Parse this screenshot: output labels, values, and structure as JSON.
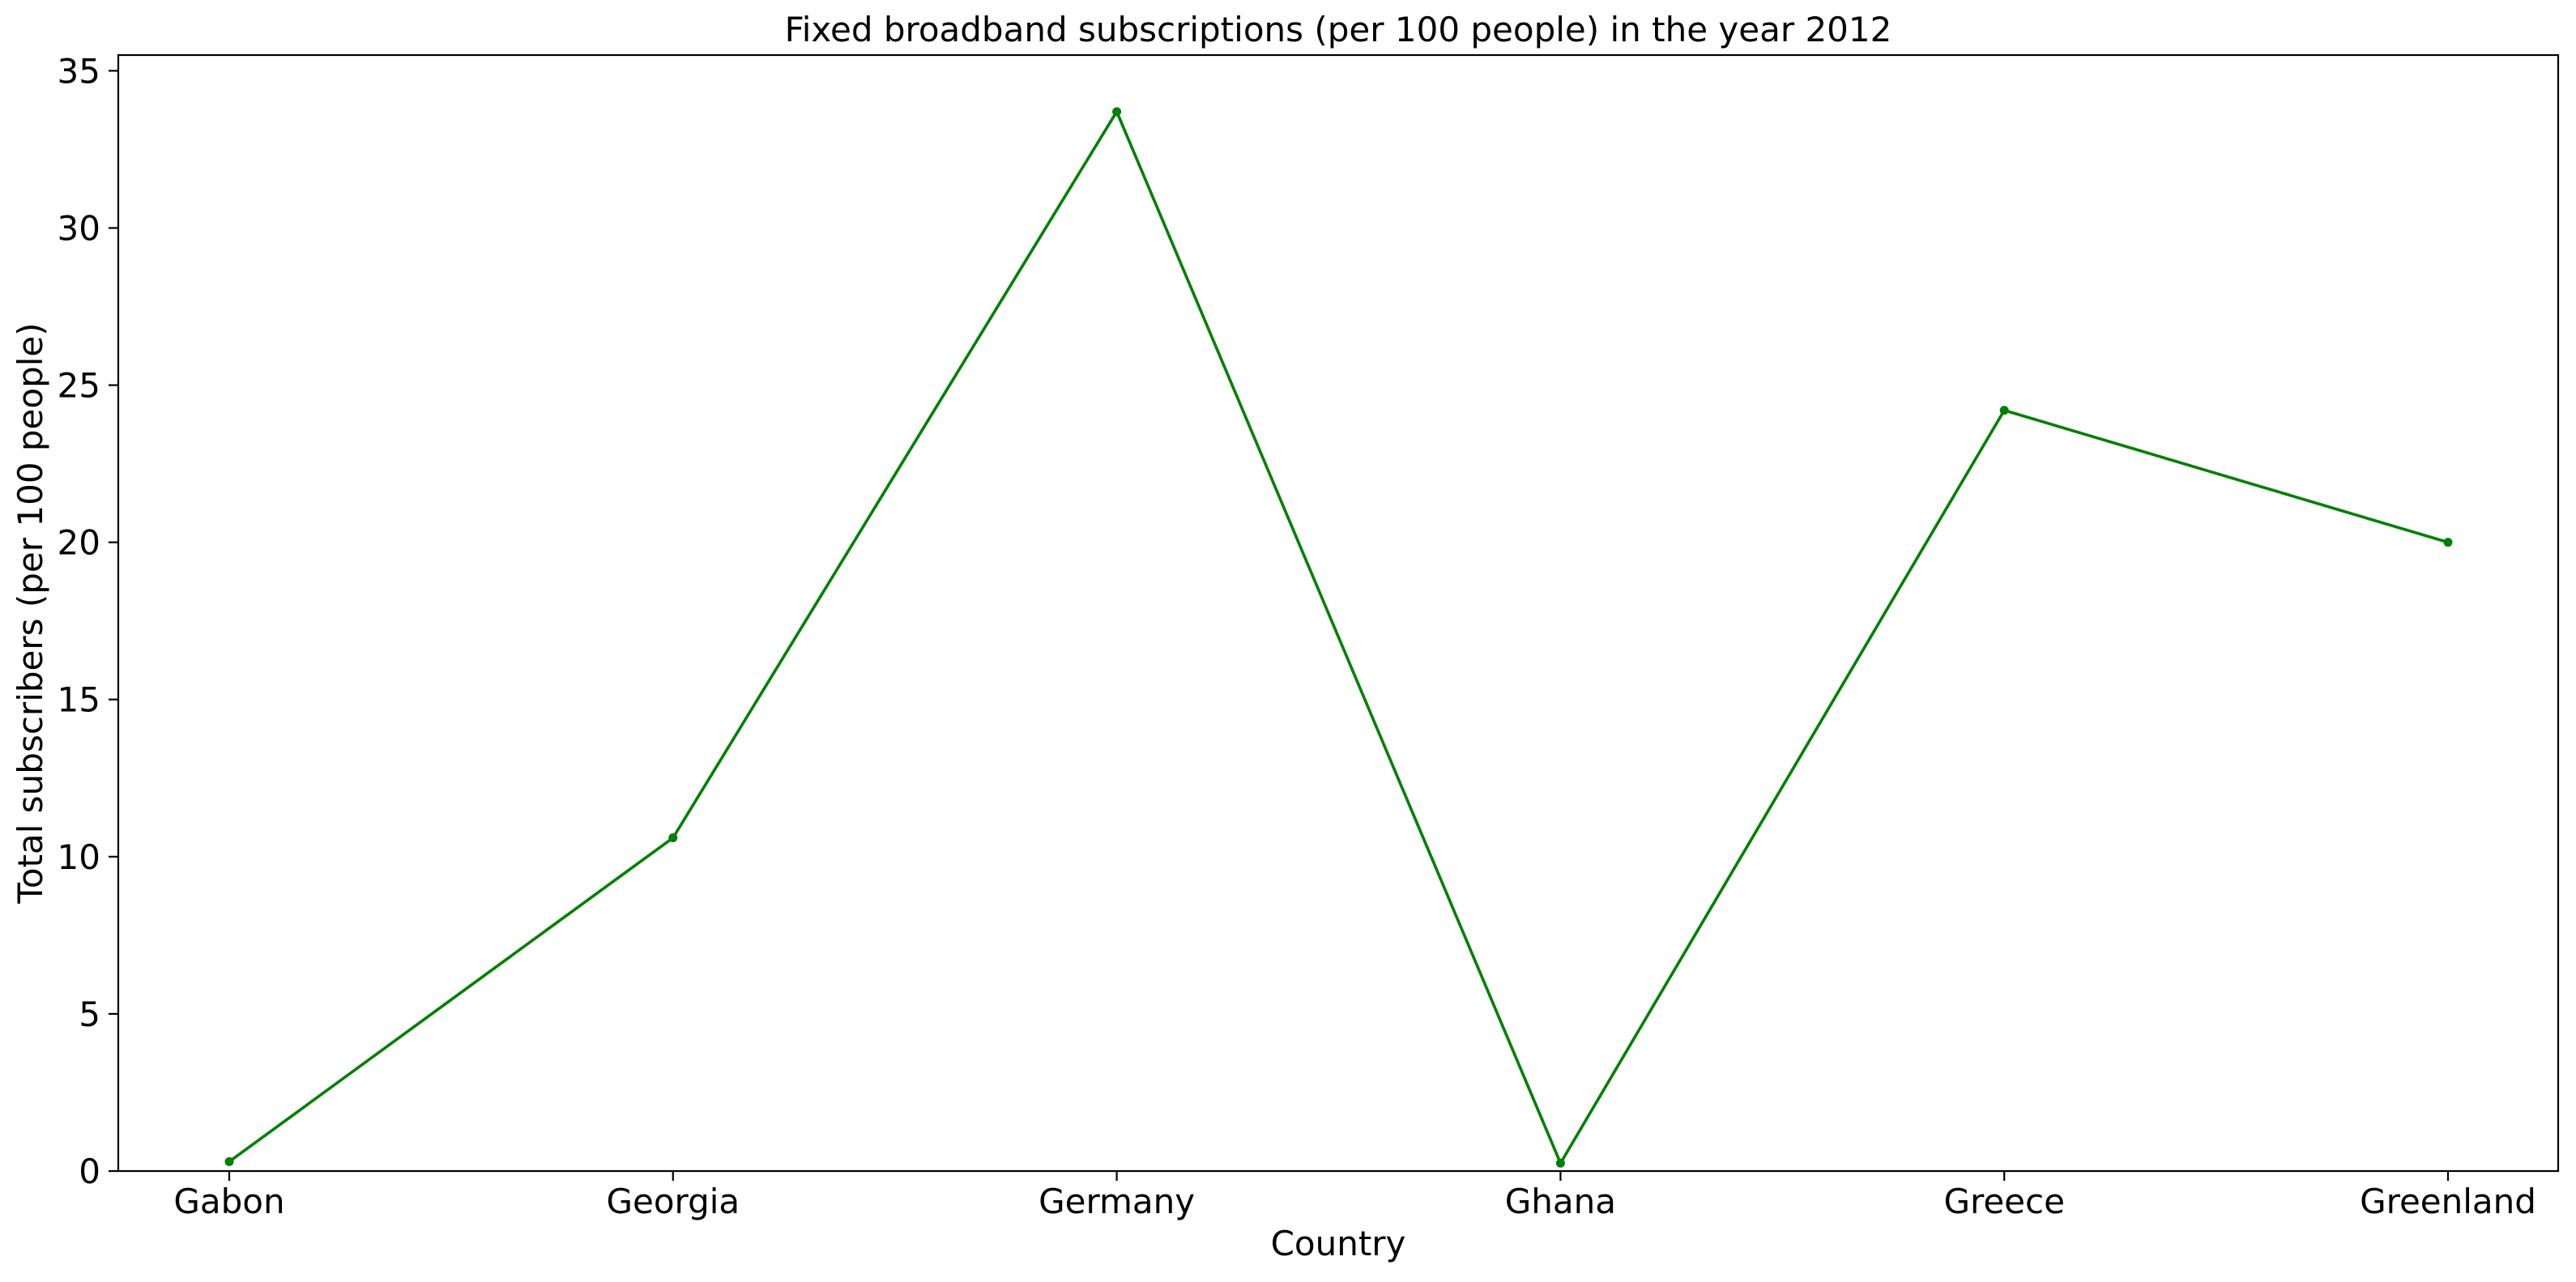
{
  "colors": {
    "background": "#ffffff",
    "axis": "#000000",
    "series": "#008000"
  },
  "chart_data": {
    "type": "line",
    "title": "Fixed broadband subscriptions (per 100 people) in the year 2012",
    "xlabel": "Country",
    "ylabel": "Total subscribers (per 100 people)",
    "categories": [
      "Gabon",
      "Georgia",
      "Germany",
      "Ghana",
      "Greece",
      "Greenland"
    ],
    "series": [
      {
        "values": [
          0.3,
          10.6,
          33.7,
          0.25,
          24.2,
          20.0
        ],
        "color": "#008000",
        "marker": "circle"
      }
    ],
    "ylim": [
      0,
      35.5
    ],
    "yticks": [
      0,
      5,
      10,
      15,
      20,
      25,
      30,
      35
    ],
    "grid": false,
    "legend": "none"
  }
}
